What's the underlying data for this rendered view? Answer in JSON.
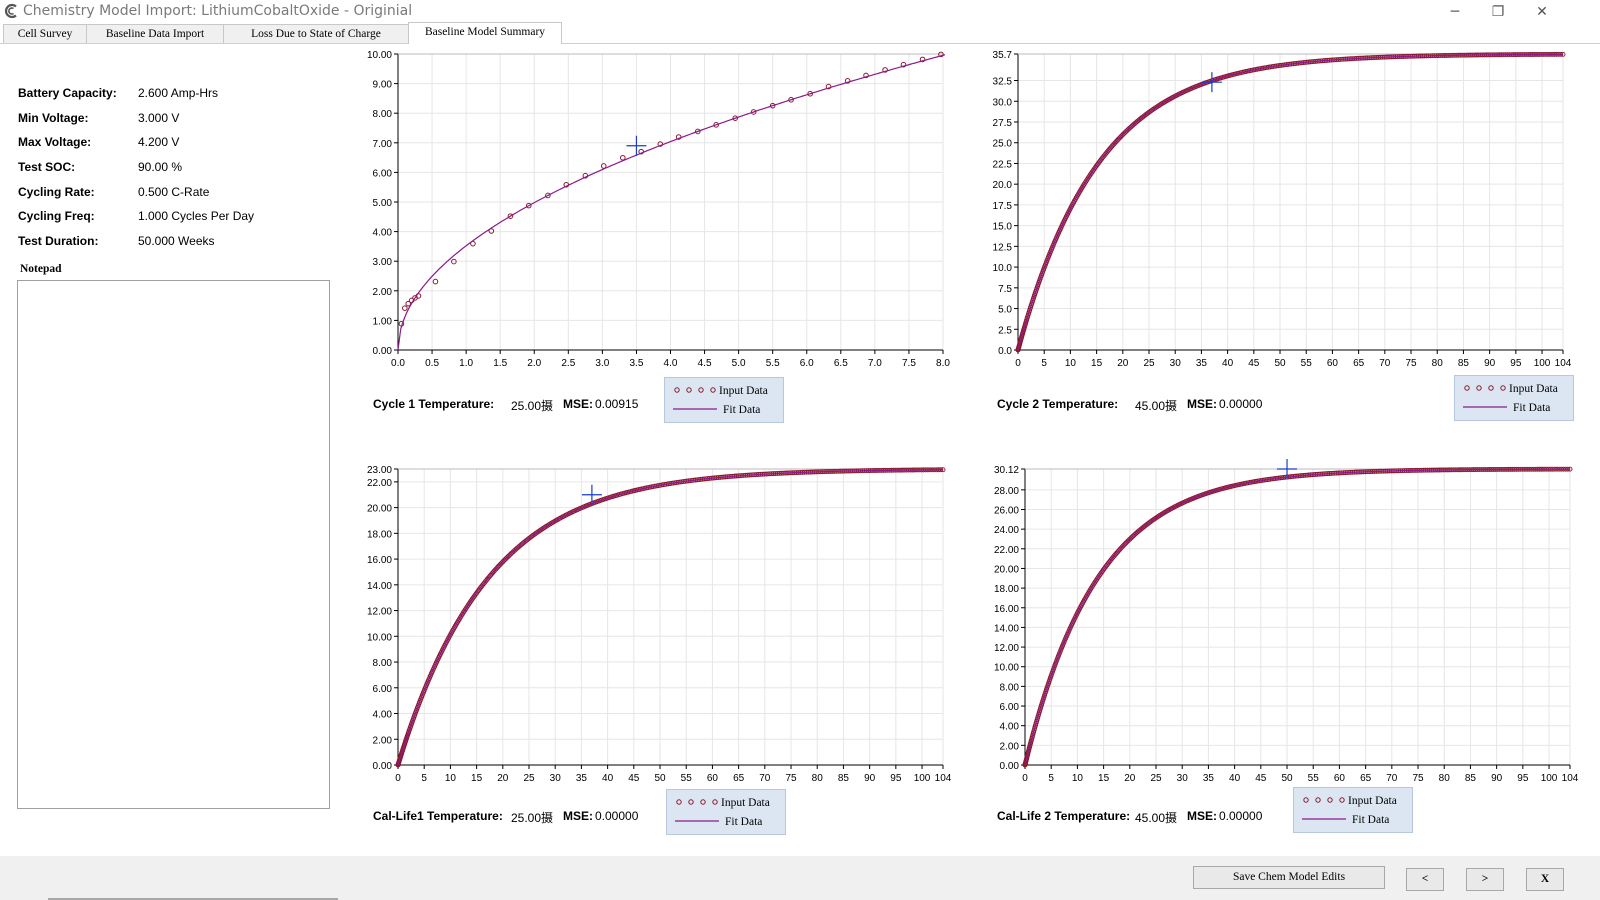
{
  "window": {
    "title": "Chemistry Model Import: LithiumCobaltOxide - Originial",
    "icon": "app-logo-icon",
    "controls": {
      "minimize": "─",
      "restore": "❐",
      "close": "✕"
    }
  },
  "tabs": [
    {
      "label": "Cell Survey",
      "active": false
    },
    {
      "label": "Baseline Data Import",
      "active": false
    },
    {
      "label": "Loss Due to State of Charge",
      "active": false
    },
    {
      "label": "Baseline Model Summary",
      "active": true
    }
  ],
  "summary": [
    {
      "label": "Battery Capacity:",
      "value": "2.600 Amp-Hrs"
    },
    {
      "label": "Min Voltage:",
      "value": "3.000 V"
    },
    {
      "label": "Max Voltage:",
      "value": "4.200 V"
    },
    {
      "label": "Test SOC:",
      "value": "90.00 %"
    },
    {
      "label": "Cycling Rate:",
      "value": "0.500 C-Rate"
    },
    {
      "label": "Cycling Freq:",
      "value": "1.000 Cycles Per Day"
    },
    {
      "label": "Test Duration:",
      "value": "50.000 Weeks"
    }
  ],
  "notepad": {
    "label": "Notepad",
    "value": ""
  },
  "colors": {
    "input_marker": "#8b1a2b",
    "fit_line": "#8b1a8b",
    "cursor": "#1a3ccc",
    "grid": "#e6e6e6",
    "legend_bg": "#dbe6f2"
  },
  "legend": {
    "input_label": "Input Data",
    "fit_label": "Fit Data"
  },
  "chart_data": [
    {
      "type": "line",
      "panel": "cycle1",
      "info": {
        "temp_label": "Cycle 1 Temperature:",
        "temp_value": "25.00摄",
        "mse_label": "MSE:",
        "mse_value": "0.00915"
      },
      "xlim": [
        0,
        8
      ],
      "ylim": [
        0,
        10
      ],
      "xticks": [
        "0.0",
        "0.5",
        "1.0",
        "1.5",
        "2.0",
        "2.5",
        "3.0",
        "3.5",
        "4.0",
        "4.5",
        "5.0",
        "5.5",
        "6.0",
        "6.5",
        "7.0",
        "7.5",
        "8.0"
      ],
      "yticks": [
        "0.00",
        "1.00",
        "2.00",
        "3.00",
        "4.00",
        "5.00",
        "6.00",
        "7.00",
        "8.00",
        "9.00",
        "10.00"
      ],
      "fit": {
        "model": "power",
        "a": 3.52,
        "p": 0.5,
        "x_max": 8.03
      },
      "input_x": [
        0.05,
        0.1,
        0.15,
        0.2,
        0.25,
        0.3,
        0.55,
        0.82,
        1.1,
        1.37,
        1.65,
        1.92,
        2.2,
        2.47,
        2.75,
        3.02,
        3.3,
        3.57,
        3.85,
        4.12,
        4.4,
        4.67,
        4.95,
        5.22,
        5.5,
        5.77,
        6.05,
        6.32,
        6.6,
        6.87,
        7.15,
        7.42,
        7.7,
        7.97
      ],
      "input_dy": [
        0.1,
        0.3,
        0.2,
        0.1,
        0.0,
        -0.1,
        -0.3,
        -0.2,
        -0.1,
        -0.1,
        0.0,
        0.0,
        0.0,
        0.05,
        0.05,
        0.1,
        0.1,
        0.05,
        0.05,
        0.05,
        0.0,
        0.0,
        0.0,
        0.0,
        0.0,
        0.0,
        0.0,
        0.05,
        0.05,
        0.05,
        0.05,
        0.05,
        0.05,
        0.05
      ],
      "cursor": {
        "x": 3.5,
        "y": 6.9
      }
    },
    {
      "type": "line",
      "panel": "cycle2",
      "info": {
        "temp_label": "Cycle 2 Temperature:",
        "temp_value": "45.00摄",
        "mse_label": "MSE:",
        "mse_value": "0.00000"
      },
      "xlim": [
        0,
        104
      ],
      "ylim": [
        0,
        35.7
      ],
      "xticks": [
        "0",
        "5",
        "10",
        "15",
        "20",
        "25",
        "30",
        "35",
        "40",
        "45",
        "50",
        "55",
        "60",
        "65",
        "70",
        "75",
        "80",
        "85",
        "90",
        "95",
        "100",
        "104"
      ],
      "yticks": [
        "0.0",
        "2.5",
        "5.0",
        "7.5",
        "10.0",
        "12.5",
        "15.0",
        "17.5",
        "20.0",
        "22.5",
        "25.0",
        "27.5",
        "30.0",
        "32.5",
        "35.7"
      ],
      "fit": {
        "model": "saturating",
        "cap": 35.7,
        "k": 0.065,
        "x_max": 104
      },
      "cursor": {
        "x": 37,
        "y": 32.3
      }
    },
    {
      "type": "line",
      "panel": "cal1",
      "info": {
        "temp_label": "Cal-Life1 Temperature:",
        "temp_value": "25.00摄",
        "mse_label": "MSE:",
        "mse_value": "0.00000"
      },
      "xlim": [
        0,
        104
      ],
      "ylim": [
        0,
        23
      ],
      "xticks": [
        "0",
        "5",
        "10",
        "15",
        "20",
        "25",
        "30",
        "35",
        "40",
        "45",
        "50",
        "55",
        "60",
        "65",
        "70",
        "75",
        "80",
        "85",
        "90",
        "95",
        "100",
        "104"
      ],
      "yticks": [
        "0.00",
        "2.00",
        "4.00",
        "6.00",
        "8.00",
        "10.00",
        "12.00",
        "14.00",
        "16.00",
        "18.00",
        "20.00",
        "22.00",
        "23.00"
      ],
      "fit": {
        "model": "saturating",
        "cap": 23,
        "k": 0.058,
        "x_max": 104
      },
      "cursor": {
        "x": 37,
        "y": 21
      }
    },
    {
      "type": "line",
      "panel": "cal2",
      "info": {
        "temp_label": "Cal-Life 2 Temperature:",
        "temp_value": "45.00摄",
        "mse_label": "MSE:",
        "mse_value": "0.00000"
      },
      "xlim": [
        0,
        104
      ],
      "ylim": [
        0,
        30.12
      ],
      "xticks": [
        "0",
        "5",
        "10",
        "15",
        "20",
        "25",
        "30",
        "35",
        "40",
        "45",
        "50",
        "55",
        "60",
        "65",
        "70",
        "75",
        "80",
        "85",
        "90",
        "95",
        "100",
        "104"
      ],
      "yticks": [
        "0.00",
        "2.00",
        "4.00",
        "6.00",
        "8.00",
        "10.00",
        "12.00",
        "14.00",
        "16.00",
        "18.00",
        "20.00",
        "22.00",
        "24.00",
        "26.00",
        "28.00",
        "30.12"
      ],
      "fit": {
        "model": "saturating",
        "cap": 30.12,
        "k": 0.072,
        "x_max": 104
      },
      "cursor": {
        "x": 50,
        "y": 30.12
      }
    }
  ],
  "buttons": {
    "save": "Save Chem Model Edits",
    "prev": "<",
    "next": ">",
    "close": "X"
  }
}
